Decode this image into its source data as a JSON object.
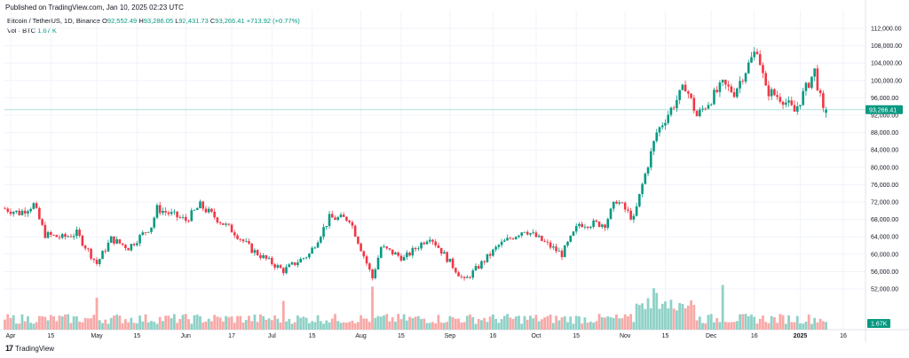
{
  "header": {
    "published": "Published on TradingView.com, Jan 10, 2025 02:23 UTC"
  },
  "legend": {
    "symbol": "Bitcoin / TetherUS, 1D, Binance",
    "o_label": "O",
    "o_value": "92,552.49",
    "h_label": "H",
    "h_value": "93,286.05",
    "l_label": "L",
    "l_value": "92,431.73",
    "c_label": "C",
    "c_value": "93,266.41",
    "change": "+713.92 (+0.77%)",
    "vol_label": "Vol · BTC",
    "vol_value": "1.67 K"
  },
  "footer": {
    "logo_glyph": "17",
    "brand": "TradingView"
  },
  "colors": {
    "up": "#089981",
    "down": "#f23645",
    "vol_up": "#8fd1c7",
    "vol_down": "#f7a9a7",
    "last_line": "#b2dfdb",
    "grid": "#f0f3fa"
  },
  "chart_data": {
    "type": "candlestick",
    "y_ticks": [
      52000,
      56000,
      60000,
      64000,
      68000,
      72000,
      76000,
      80000,
      84000,
      88000,
      92000,
      96000,
      100000,
      104000,
      108000,
      112000
    ],
    "y_tick_labels": [
      "52,000.00",
      "56,000.00",
      "60,000.00",
      "64,000.00",
      "68,000.00",
      "72,000.00",
      "76,000.00",
      "80,000.00",
      "84,000.00",
      "88,000.00",
      "92,000.00",
      "96,000.00",
      "100,000.00",
      "104,000.00",
      "108,000.00",
      "112,000.00"
    ],
    "x_ticks": [
      "2024-04-01",
      "2024-04-15",
      "2024-05-01",
      "2024-05-15",
      "2024-06-01",
      "2024-06-17",
      "2024-07-01",
      "2024-07-15",
      "2024-08-01",
      "2024-08-15",
      "2024-09-01",
      "2024-09-16",
      "2024-10-01",
      "2024-10-15",
      "2024-11-01",
      "2024-11-15",
      "2024-12-01",
      "2024-12-16",
      "2025-01-01",
      "2025-01-16"
    ],
    "x_tick_labels": [
      "Apr",
      "15",
      "May",
      "15",
      "Jun",
      "17",
      "Jul",
      "15",
      "Aug",
      "15",
      "Sep",
      "16",
      "Oct",
      "15",
      "Nov",
      "15",
      "Dec",
      "16",
      "2025",
      "16"
    ],
    "last_price": 93266.41,
    "last_price_label": "93,266.41",
    "last_volume_label": "1.67K",
    "anchors": [
      {
        "date": "2024-03-30",
        "close": 70500
      },
      {
        "date": "2024-04-04",
        "close": 69500
      },
      {
        "date": "2024-04-09",
        "close": 71400
      },
      {
        "date": "2024-04-13",
        "close": 64500
      },
      {
        "date": "2024-04-19",
        "close": 63800
      },
      {
        "date": "2024-04-24",
        "close": 64800
      },
      {
        "date": "2024-05-01",
        "close": 57800
      },
      {
        "date": "2024-05-06",
        "close": 63500
      },
      {
        "date": "2024-05-12",
        "close": 61500
      },
      {
        "date": "2024-05-20",
        "close": 66500
      },
      {
        "date": "2024-05-22",
        "close": 70500
      },
      {
        "date": "2024-06-01",
        "close": 67800
      },
      {
        "date": "2024-06-06",
        "close": 71200
      },
      {
        "date": "2024-06-18",
        "close": 65000
      },
      {
        "date": "2024-06-24",
        "close": 61000
      },
      {
        "date": "2024-07-05",
        "close": 56200
      },
      {
        "date": "2024-07-14",
        "close": 60000
      },
      {
        "date": "2024-07-21",
        "close": 68300
      },
      {
        "date": "2024-07-28",
        "close": 68200
      },
      {
        "date": "2024-08-05",
        "close": 54500
      },
      {
        "date": "2024-08-08",
        "close": 61600
      },
      {
        "date": "2024-08-16",
        "close": 59000
      },
      {
        "date": "2024-08-25",
        "close": 64200
      },
      {
        "date": "2024-09-06",
        "close": 53800
      },
      {
        "date": "2024-09-18",
        "close": 62000
      },
      {
        "date": "2024-09-27",
        "close": 65700
      },
      {
        "date": "2024-10-10",
        "close": 60000
      },
      {
        "date": "2024-10-16",
        "close": 67000
      },
      {
        "date": "2024-10-25",
        "close": 67000
      },
      {
        "date": "2024-10-29",
        "close": 72500
      },
      {
        "date": "2024-11-04",
        "close": 68000
      },
      {
        "date": "2024-11-07",
        "close": 76000
      },
      {
        "date": "2024-11-12",
        "close": 88000
      },
      {
        "date": "2024-11-22",
        "close": 98800
      },
      {
        "date": "2024-11-26",
        "close": 91800
      },
      {
        "date": "2024-12-05",
        "close": 99000
      },
      {
        "date": "2024-12-09",
        "close": 97300
      },
      {
        "date": "2024-12-17",
        "close": 107500
      },
      {
        "date": "2024-12-20",
        "close": 97800
      },
      {
        "date": "2024-12-26",
        "close": 95700
      },
      {
        "date": "2024-12-30",
        "close": 92800
      },
      {
        "date": "2025-01-06",
        "close": 102200
      },
      {
        "date": "2025-01-09",
        "close": 92600
      },
      {
        "date": "2025-01-10",
        "close": 93266
      }
    ],
    "volume_peaks": [
      {
        "date": "2024-05-01",
        "value": 1.0
      },
      {
        "date": "2024-07-05",
        "value": 0.9
      },
      {
        "date": "2024-08-05",
        "value": 1.35
      },
      {
        "date": "2024-11-11",
        "value": 1.3
      },
      {
        "date": "2024-11-12",
        "value": 1.15
      },
      {
        "date": "2024-12-05",
        "value": 1.4
      }
    ]
  }
}
